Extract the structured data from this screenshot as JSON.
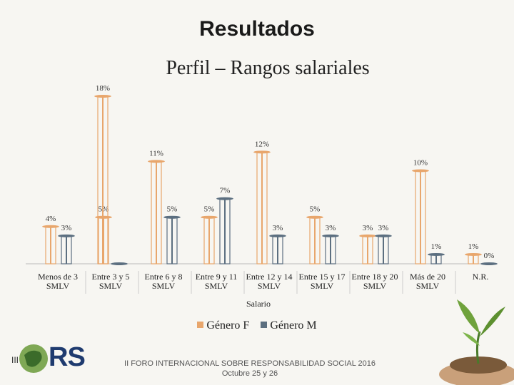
{
  "slide": {
    "title": "Resultados",
    "footer_line1": "II FORO INTERNACIONAL SOBRE RESPONSABILIDAD SOCIAL 2016",
    "footer_line2": "Octubre 25 y 26",
    "logo_text": "RS",
    "logo_prefix": "III"
  },
  "chart_data": {
    "type": "bar",
    "title": "Perfil – Rangos salariales",
    "xlabel": "Salario",
    "ylabel": "",
    "categories": [
      [
        "Menos de 3",
        "SMLV"
      ],
      [
        "Entre 3 y 5",
        "SMLV"
      ],
      [
        "Entre 6 y 8",
        "SMLV"
      ],
      [
        "Entre 9 y 11",
        "SMLV"
      ],
      [
        "Entre 12 y 14",
        "SMLV"
      ],
      [
        "Entre 15 y 17",
        "SMLV"
      ],
      [
        "Entre 18 y 20",
        "SMLV"
      ],
      [
        "Más de 20",
        "SMLV"
      ],
      [
        "N.R."
      ]
    ],
    "series": [
      {
        "name": "Género F",
        "color": "#e8a66c",
        "values": [
          4,
          5,
          11,
          5,
          12,
          5,
          3,
          10,
          1
        ],
        "labels": [
          "4%",
          "5%",
          "11%",
          "5%",
          "12%",
          "5%",
          "3%",
          "10%",
          "1%"
        ]
      },
      {
        "name": "Género M",
        "color": "#5c6f80",
        "values": [
          3,
          0,
          5,
          7,
          3,
          3,
          3,
          1,
          0
        ],
        "labels": [
          "3%",
          "",
          "5%",
          "7%",
          "3%",
          "3%",
          "3%",
          "1%",
          "0%"
        ]
      }
    ],
    "extra_first_bar": {
      "value": 18,
      "label": "18%"
    },
    "ylim": [
      0,
      18
    ],
    "grid": false,
    "legend": "bottom"
  }
}
